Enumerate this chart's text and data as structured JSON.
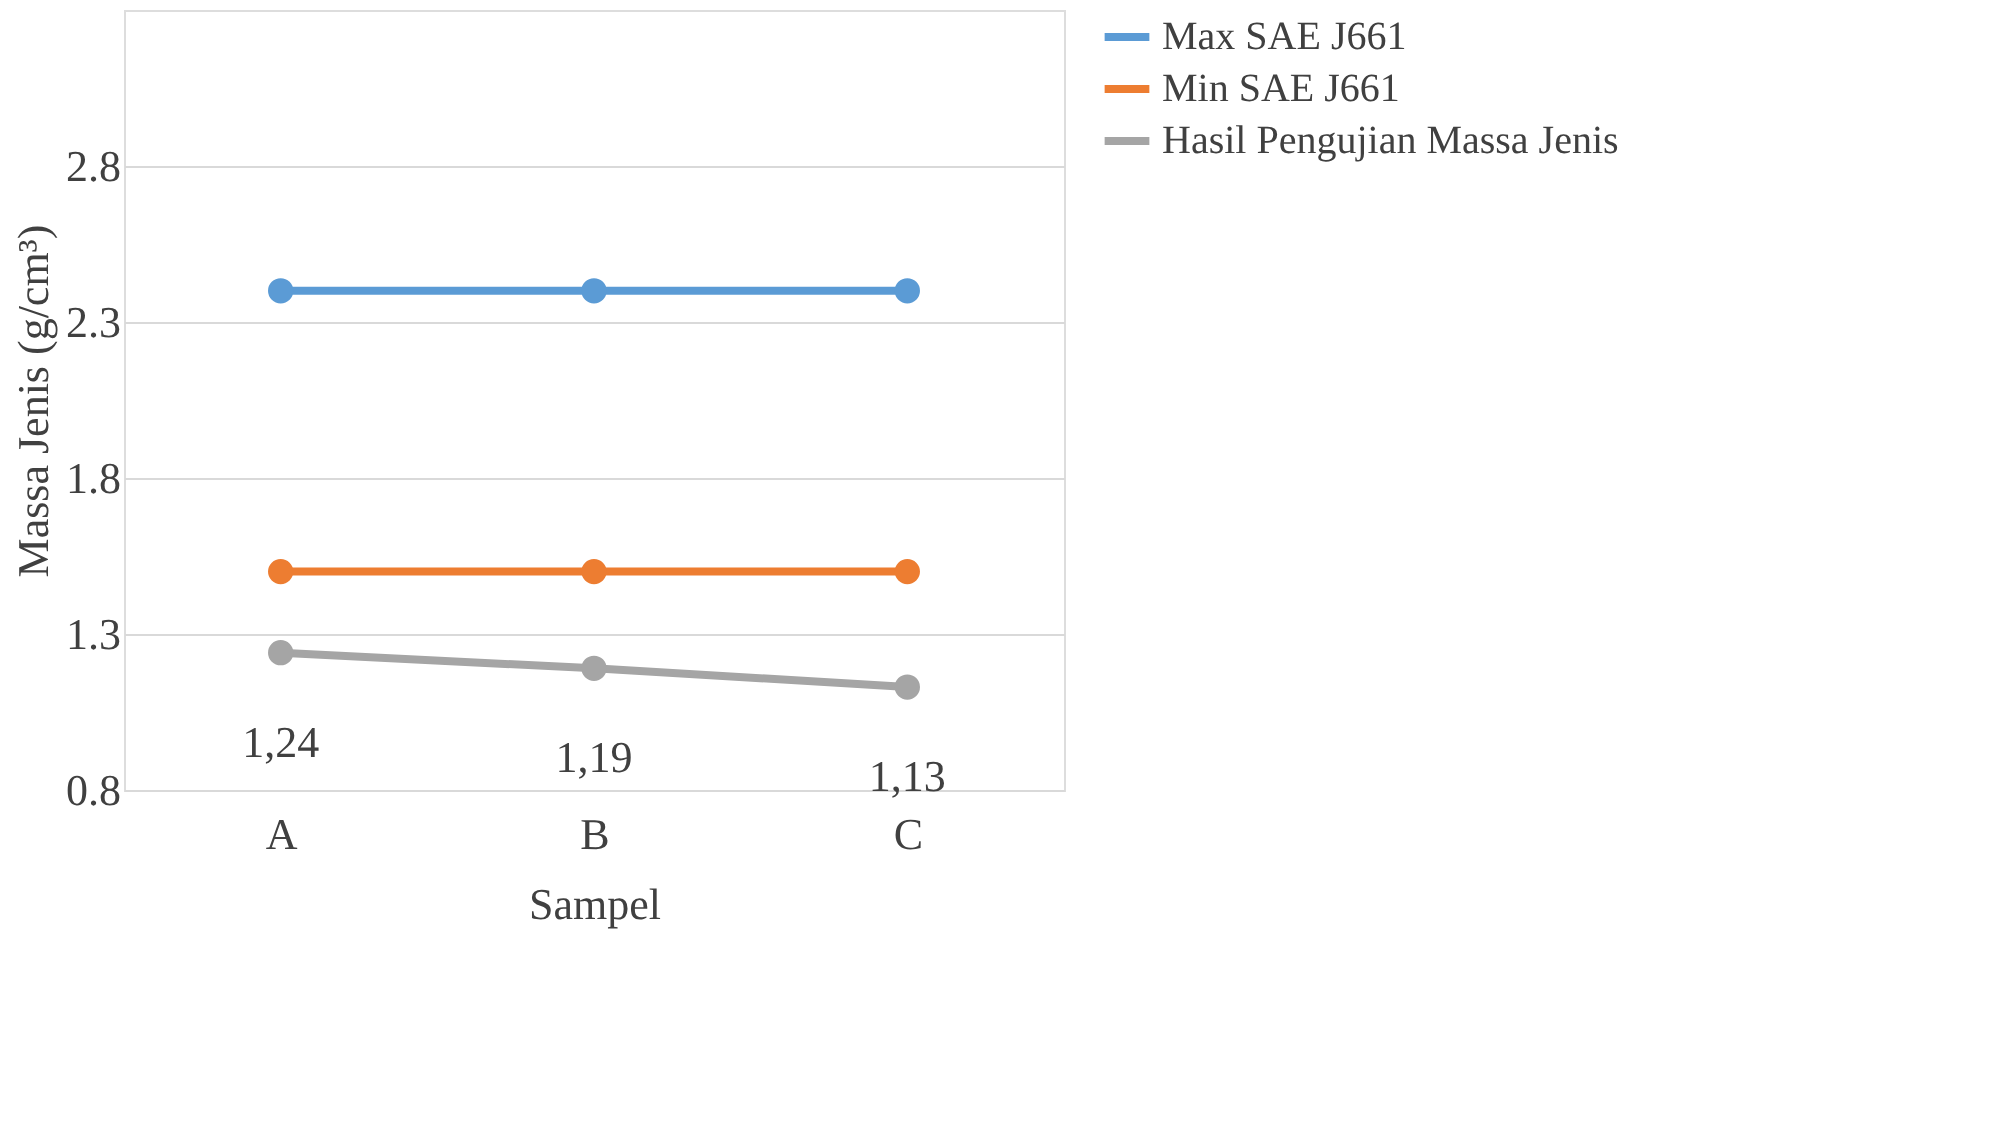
{
  "chart_data": {
    "type": "line",
    "xlabel": "Sampel",
    "ylabel": "Massa Jenis (g/cm³)",
    "categories": [
      "A",
      "B",
      "C"
    ],
    "series": [
      {
        "name": "Max SAE J661",
        "color": "#5b9bd5",
        "values": [
          2.4,
          2.4,
          2.4
        ]
      },
      {
        "name": "Min SAE J661",
        "color": "#ed7d31",
        "values": [
          1.5,
          1.5,
          1.5
        ]
      },
      {
        "name": "Hasil Pengujian Massa Jenis",
        "color": "#a5a5a5",
        "values": [
          1.24,
          1.19,
          1.13
        ],
        "value_labels": [
          "1,24",
          "1,19",
          "1,13"
        ]
      }
    ],
    "ylim": [
      0.8,
      3.3
    ],
    "yticks": [
      0.8,
      1.3,
      1.8,
      2.3,
      2.8
    ],
    "grid": "y",
    "legend": "right",
    "marker": "circle",
    "line_style": "solid"
  }
}
